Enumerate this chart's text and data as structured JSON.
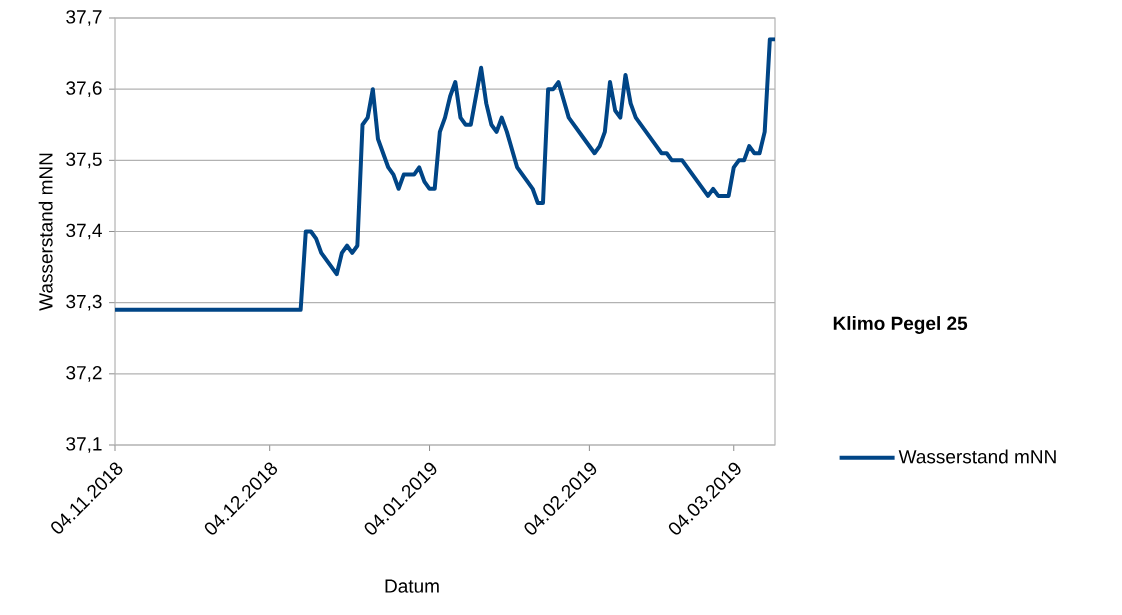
{
  "chart_data": {
    "type": "line",
    "title": "Klimo Pegel 25",
    "xlabel": "Datum",
    "ylabel": "Wasserstand mNN",
    "x": [
      "2018-11-04",
      "2018-12-10",
      "2018-12-11",
      "2018-12-12",
      "2018-12-13",
      "2018-12-14",
      "2018-12-15",
      "2018-12-16",
      "2018-12-17",
      "2018-12-18",
      "2018-12-19",
      "2018-12-20",
      "2018-12-21",
      "2018-12-22",
      "2018-12-23",
      "2018-12-24",
      "2018-12-25",
      "2018-12-26",
      "2018-12-27",
      "2018-12-28",
      "2018-12-29",
      "2018-12-30",
      "2019-01-01",
      "2019-01-02",
      "2019-01-03",
      "2019-01-04",
      "2019-01-05",
      "2019-01-06",
      "2019-01-07",
      "2019-01-08",
      "2019-01-09",
      "2019-01-10",
      "2019-01-11",
      "2019-01-12",
      "2019-01-13",
      "2019-01-14",
      "2019-01-15",
      "2019-01-16",
      "2019-01-17",
      "2019-01-18",
      "2019-01-19",
      "2019-01-21",
      "2019-01-22",
      "2019-01-23",
      "2019-01-24",
      "2019-01-25",
      "2019-01-26",
      "2019-01-27",
      "2019-01-28",
      "2019-01-29",
      "2019-01-31",
      "2019-02-01",
      "2019-02-03",
      "2019-02-05",
      "2019-02-06",
      "2019-02-07",
      "2019-02-08",
      "2019-02-09",
      "2019-02-10",
      "2019-02-11",
      "2019-02-12",
      "2019-02-13",
      "2019-02-15",
      "2019-02-16",
      "2019-02-17",
      "2019-02-18",
      "2019-02-19",
      "2019-02-20",
      "2019-02-22",
      "2019-02-27",
      "2019-02-28",
      "2019-03-01",
      "2019-03-03",
      "2019-03-04",
      "2019-03-05",
      "2019-03-06",
      "2019-03-07",
      "2019-03-08",
      "2019-03-09",
      "2019-03-10",
      "2019-03-11",
      "2019-03-12"
    ],
    "series": [
      {
        "name": "Wasserstand mNN",
        "color": "#004586",
        "values": [
          37.29,
          37.29,
          37.4,
          37.4,
          37.39,
          37.37,
          37.36,
          37.35,
          37.34,
          37.37,
          37.38,
          37.37,
          37.38,
          37.55,
          37.56,
          37.6,
          37.53,
          37.51,
          37.49,
          37.48,
          37.46,
          37.48,
          37.48,
          37.49,
          37.47,
          37.46,
          37.46,
          37.54,
          37.56,
          37.59,
          37.61,
          37.56,
          37.55,
          37.55,
          37.59,
          37.63,
          37.58,
          37.55,
          37.54,
          37.56,
          37.54,
          37.49,
          37.48,
          37.47,
          37.46,
          37.44,
          37.44,
          37.6,
          37.6,
          37.61,
          37.56,
          37.55,
          37.53,
          37.51,
          37.52,
          37.54,
          37.61,
          37.57,
          37.56,
          37.62,
          37.58,
          37.56,
          37.54,
          37.53,
          37.52,
          37.51,
          37.51,
          37.5,
          37.5,
          37.45,
          37.46,
          37.45,
          37.45,
          37.49,
          37.5,
          37.5,
          37.52,
          37.51,
          37.51,
          37.54,
          37.67,
          37.67
        ]
      }
    ],
    "xlim": [
      "2018-11-04",
      "2019-03-12"
    ],
    "xticks": [
      {
        "value": "2018-11-04",
        "label": "04.11.2018"
      },
      {
        "value": "2018-12-04",
        "label": "04.12.2018"
      },
      {
        "value": "2019-01-04",
        "label": "04.01.2019"
      },
      {
        "value": "2019-02-04",
        "label": "04.02.2019"
      },
      {
        "value": "2019-03-04",
        "label": "04.03.2019"
      }
    ],
    "ylim": [
      37.1,
      37.7
    ],
    "yticks": [
      {
        "value": 37.1,
        "label": "37,1"
      },
      {
        "value": 37.2,
        "label": "37,2"
      },
      {
        "value": 37.3,
        "label": "37,3"
      },
      {
        "value": 37.4,
        "label": "37,4"
      },
      {
        "value": 37.5,
        "label": "37,5"
      },
      {
        "value": 37.6,
        "label": "37,6"
      },
      {
        "value": 37.7,
        "label": "37,7"
      }
    ],
    "grid": "y",
    "legend": "right",
    "marker": "none",
    "line_style": "solid"
  }
}
